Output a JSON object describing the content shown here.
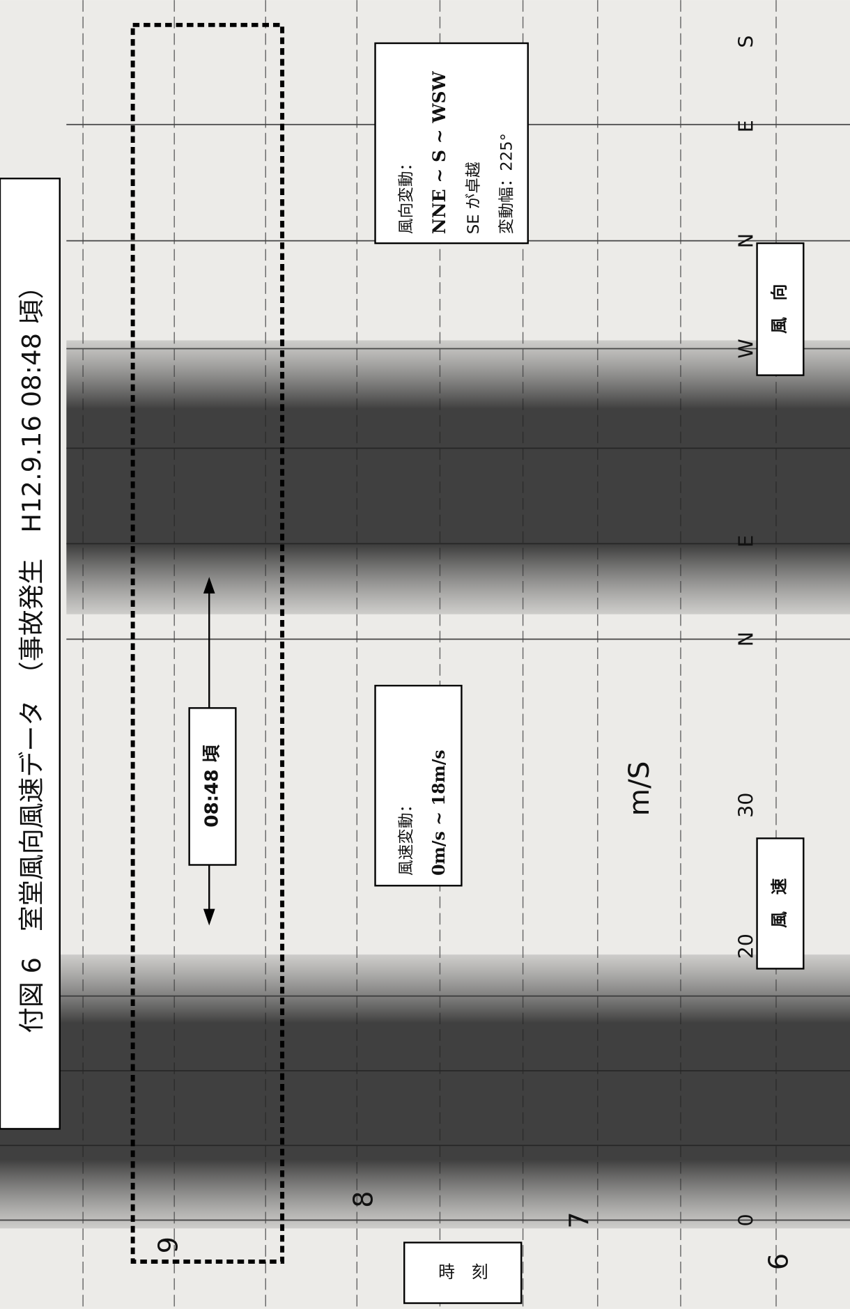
{
  "title": "付図 6　室堂風向風速データ　（事故発生　H12.9.16 08:48 頃）",
  "direction_note": {
    "lines": [
      "風向変動：",
      "NNE ~ S ~ WSW",
      "SE が卓越",
      "変動幅：225°"
    ]
  },
  "direction_label": "風　向",
  "speed_note": {
    "lines": [
      "風速変動：",
      "0m/s ~ 18m/s"
    ]
  },
  "speed_label": "風　速",
  "time_marker": "08:48 頃",
  "time_label": "時　刻",
  "scale_labels": {
    "direction": [
      "N",
      "E",
      "W",
      "N",
      "E",
      "S"
    ],
    "speed": [
      "30",
      "20",
      "0"
    ],
    "unit": "m/S"
  },
  "time_ticks": [
    "9",
    "8",
    "7",
    "6"
  ]
}
